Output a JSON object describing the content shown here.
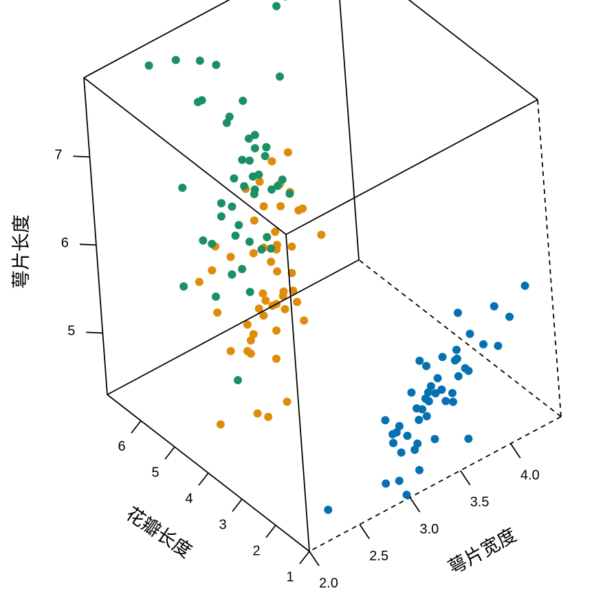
{
  "chart_data": {
    "type": "scatter3d",
    "title": "",
    "xlabel": "花瓣长度",
    "ylabel": "萼片宽度",
    "zlabel": "萼片长度",
    "xlim": [
      1,
      7
    ],
    "ylim": [
      2.0,
      4.5
    ],
    "zlim": [
      4.3,
      7.9
    ],
    "x_ticks": [
      "1",
      "2",
      "3",
      "4",
      "5",
      "6"
    ],
    "y_ticks": [
      "2.0",
      "2.5",
      "3.0",
      "3.5",
      "4.0"
    ],
    "z_ticks": [
      "5",
      "6",
      "7"
    ],
    "x_tick_values": [
      1,
      2,
      3,
      4,
      5,
      6
    ],
    "y_tick_values": [
      2.0,
      2.5,
      3.0,
      3.5,
      4.0
    ],
    "z_tick_values": [
      5,
      6,
      7
    ],
    "legend": "none",
    "grid": false,
    "box": true,
    "series": [
      {
        "color": "#0571b0",
        "points": [
          [
            1.4,
            3.5,
            5.1
          ],
          [
            1.4,
            3.0,
            4.9
          ],
          [
            1.3,
            3.2,
            4.7
          ],
          [
            1.5,
            3.1,
            4.6
          ],
          [
            1.4,
            3.6,
            5.0
          ],
          [
            1.7,
            3.9,
            5.4
          ],
          [
            1.4,
            3.4,
            4.6
          ],
          [
            1.5,
            3.4,
            5.0
          ],
          [
            1.4,
            2.9,
            4.4
          ],
          [
            1.5,
            3.1,
            4.9
          ],
          [
            1.5,
            3.7,
            5.4
          ],
          [
            1.6,
            3.4,
            4.8
          ],
          [
            1.4,
            3.0,
            4.8
          ],
          [
            1.1,
            3.0,
            4.3
          ],
          [
            1.2,
            4.0,
            5.8
          ],
          [
            1.5,
            4.4,
            5.7
          ],
          [
            1.3,
            3.9,
            5.4
          ],
          [
            1.4,
            3.5,
            5.1
          ],
          [
            1.7,
            3.8,
            5.7
          ],
          [
            1.5,
            3.8,
            5.1
          ],
          [
            1.7,
            3.4,
            5.4
          ],
          [
            1.5,
            3.7,
            5.1
          ],
          [
            1.0,
            3.6,
            4.6
          ],
          [
            1.7,
            3.3,
            5.1
          ],
          [
            1.9,
            3.4,
            4.8
          ],
          [
            1.6,
            3.0,
            5.0
          ],
          [
            1.6,
            3.4,
            5.0
          ],
          [
            1.5,
            3.5,
            5.2
          ],
          [
            1.4,
            3.4,
            5.2
          ],
          [
            1.6,
            3.2,
            4.7
          ],
          [
            1.6,
            3.1,
            4.8
          ],
          [
            1.5,
            3.4,
            5.4
          ],
          [
            1.5,
            4.1,
            5.2
          ],
          [
            1.4,
            4.2,
            5.5
          ],
          [
            1.5,
            3.1,
            4.9
          ],
          [
            1.2,
            3.2,
            5.0
          ],
          [
            1.3,
            3.5,
            5.5
          ],
          [
            1.4,
            3.6,
            4.9
          ],
          [
            1.3,
            3.0,
            4.4
          ],
          [
            1.5,
            3.4,
            5.1
          ],
          [
            1.3,
            3.5,
            5.0
          ],
          [
            1.3,
            2.3,
            4.5
          ],
          [
            1.3,
            3.2,
            4.4
          ],
          [
            1.6,
            3.5,
            5.0
          ],
          [
            1.9,
            3.8,
            5.1
          ],
          [
            1.4,
            3.0,
            4.8
          ],
          [
            1.6,
            3.8,
            5.1
          ],
          [
            1.4,
            3.2,
            4.6
          ],
          [
            1.5,
            3.7,
            5.3
          ],
          [
            1.4,
            3.3,
            5.0
          ]
        ]
      },
      {
        "color": "#e08c0b",
        "points": [
          [
            4.7,
            3.2,
            7.0
          ],
          [
            4.5,
            3.2,
            6.4
          ],
          [
            4.9,
            3.1,
            6.9
          ],
          [
            4.0,
            2.3,
            5.5
          ],
          [
            4.6,
            2.8,
            6.5
          ],
          [
            4.5,
            2.8,
            5.7
          ],
          [
            4.7,
            3.3,
            6.3
          ],
          [
            3.3,
            2.4,
            4.9
          ],
          [
            4.6,
            2.9,
            6.6
          ],
          [
            3.9,
            2.7,
            5.2
          ],
          [
            3.5,
            2.0,
            5.0
          ],
          [
            4.2,
            3.0,
            5.9
          ],
          [
            4.0,
            2.2,
            6.0
          ],
          [
            4.7,
            2.9,
            6.1
          ],
          [
            3.6,
            2.9,
            5.6
          ],
          [
            4.4,
            3.1,
            6.7
          ],
          [
            4.5,
            3.0,
            5.6
          ],
          [
            4.1,
            2.7,
            5.8
          ],
          [
            4.5,
            2.2,
            6.2
          ],
          [
            3.9,
            2.5,
            5.6
          ],
          [
            4.8,
            3.2,
            5.9
          ],
          [
            4.0,
            2.8,
            6.1
          ],
          [
            4.9,
            2.5,
            6.3
          ],
          [
            4.7,
            2.8,
            6.1
          ],
          [
            4.3,
            2.9,
            6.4
          ],
          [
            4.4,
            3.0,
            6.6
          ],
          [
            4.8,
            2.8,
            6.8
          ],
          [
            5.0,
            3.0,
            6.7
          ],
          [
            4.5,
            2.9,
            6.0
          ],
          [
            3.5,
            2.6,
            5.7
          ],
          [
            3.8,
            2.4,
            5.5
          ],
          [
            3.7,
            2.4,
            5.5
          ],
          [
            3.9,
            2.7,
            5.8
          ],
          [
            5.1,
            2.7,
            6.0
          ],
          [
            4.5,
            3.0,
            5.4
          ],
          [
            4.5,
            3.4,
            6.0
          ],
          [
            4.7,
            3.1,
            6.7
          ],
          [
            4.4,
            2.3,
            6.3
          ],
          [
            4.1,
            3.0,
            5.6
          ],
          [
            4.0,
            2.5,
            5.5
          ],
          [
            4.4,
            2.6,
            5.5
          ],
          [
            4.6,
            3.0,
            6.1
          ],
          [
            4.0,
            2.6,
            5.8
          ],
          [
            3.3,
            2.3,
            5.0
          ],
          [
            4.2,
            2.7,
            5.6
          ],
          [
            4.2,
            3.0,
            5.7
          ],
          [
            4.2,
            2.9,
            5.7
          ],
          [
            4.3,
            2.9,
            6.2
          ],
          [
            3.0,
            2.5,
            5.1
          ],
          [
            4.1,
            2.8,
            5.7
          ]
        ]
      },
      {
        "color": "#1a9063",
        "points": [
          [
            6.0,
            3.3,
            6.3
          ],
          [
            5.1,
            2.7,
            5.8
          ],
          [
            5.9,
            3.0,
            7.1
          ],
          [
            5.6,
            2.9,
            6.3
          ],
          [
            5.8,
            3.0,
            6.5
          ],
          [
            6.6,
            3.0,
            7.6
          ],
          [
            4.5,
            2.5,
            4.9
          ],
          [
            6.3,
            2.9,
            7.3
          ],
          [
            5.8,
            2.5,
            6.7
          ],
          [
            6.1,
            3.6,
            7.2
          ],
          [
            5.1,
            3.2,
            6.5
          ],
          [
            5.3,
            2.7,
            6.4
          ],
          [
            5.5,
            3.0,
            6.8
          ],
          [
            5.0,
            2.5,
            5.7
          ],
          [
            5.1,
            2.8,
            5.8
          ],
          [
            5.3,
            3.2,
            6.4
          ],
          [
            5.5,
            3.0,
            6.5
          ],
          [
            6.7,
            3.8,
            7.7
          ],
          [
            6.9,
            2.6,
            7.7
          ],
          [
            5.0,
            2.2,
            6.0
          ],
          [
            5.7,
            3.2,
            6.9
          ],
          [
            4.9,
            2.8,
            5.6
          ],
          [
            6.7,
            2.8,
            7.7
          ],
          [
            4.9,
            2.7,
            6.3
          ],
          [
            5.7,
            3.3,
            6.7
          ],
          [
            6.0,
            3.2,
            7.2
          ],
          [
            4.8,
            2.8,
            6.2
          ],
          [
            4.9,
            3.0,
            6.1
          ],
          [
            5.6,
            2.8,
            6.4
          ],
          [
            5.8,
            3.0,
            7.2
          ],
          [
            6.1,
            2.8,
            7.4
          ],
          [
            6.4,
            3.8,
            7.9
          ],
          [
            5.6,
            2.8,
            6.4
          ],
          [
            5.1,
            2.8,
            6.3
          ],
          [
            5.6,
            2.6,
            6.1
          ],
          [
            6.1,
            3.0,
            7.7
          ],
          [
            5.6,
            3.4,
            6.3
          ],
          [
            5.5,
            3.1,
            6.4
          ],
          [
            4.8,
            3.0,
            6.0
          ],
          [
            5.4,
            3.1,
            6.9
          ],
          [
            5.6,
            3.1,
            6.7
          ],
          [
            5.1,
            3.1,
            6.9
          ],
          [
            5.1,
            2.7,
            5.8
          ],
          [
            5.9,
            3.2,
            6.8
          ],
          [
            5.7,
            3.3,
            6.7
          ],
          [
            5.2,
            3.0,
            6.7
          ],
          [
            5.0,
            2.5,
            6.3
          ],
          [
            5.2,
            3.0,
            6.5
          ],
          [
            5.4,
            3.4,
            6.2
          ],
          [
            5.1,
            3.0,
            5.9
          ]
        ]
      }
    ]
  }
}
